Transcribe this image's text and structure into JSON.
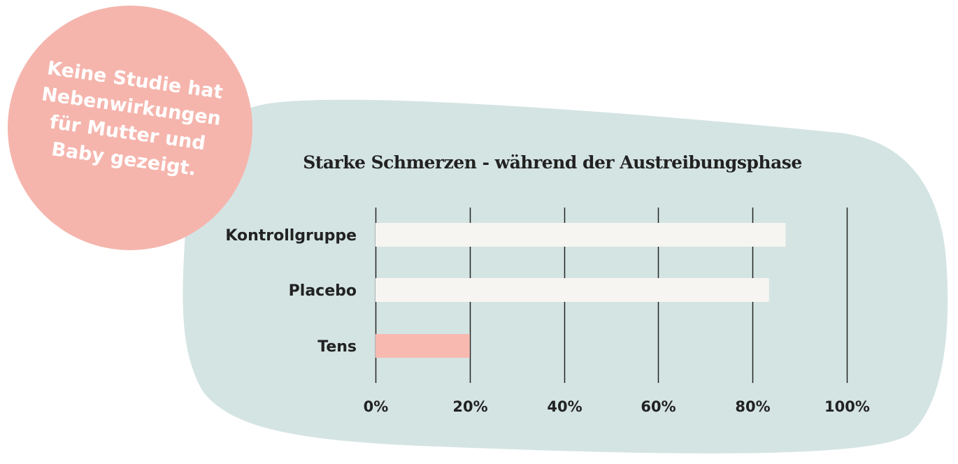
{
  "badge": {
    "lines": [
      "Keine Studie hat",
      "Nebenwirkungen",
      "für Mutter und",
      "Baby gezeigt."
    ]
  },
  "colors": {
    "background_blob": "#d4e4e3",
    "badge": "#f5b5ad",
    "bar_default": "#f7f5f1",
    "bar_highlight": "#f7b9b0",
    "gridline": "#222222"
  },
  "chart_data": {
    "type": "bar",
    "orientation": "horizontal",
    "title": "Starke Schmerzen - während der Austreibungsphase",
    "categories": [
      "Kontrollgruppe",
      "Placebo",
      "Tens"
    ],
    "values": [
      87,
      83.5,
      20
    ],
    "highlight": [
      "Tens"
    ],
    "xlim": [
      0,
      100
    ],
    "ticks": [
      0,
      20,
      40,
      60,
      80,
      100
    ],
    "tick_labels": [
      "0%",
      "20%",
      "40%",
      "60%",
      "80%",
      "100%"
    ],
    "grid": true
  }
}
